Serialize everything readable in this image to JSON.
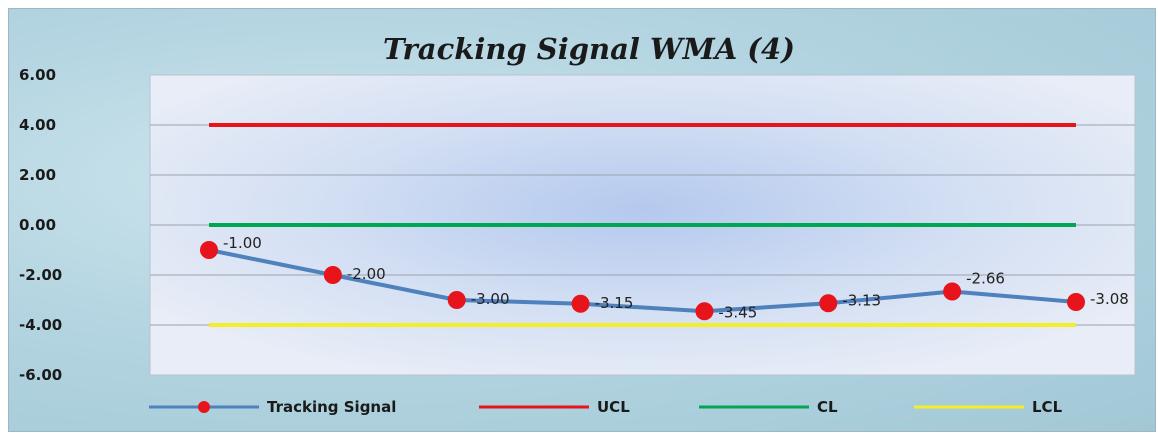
{
  "chart_data": {
    "type": "line",
    "title": "Tracking Signal WMA (4)",
    "xlabel": "",
    "ylabel": "",
    "ylim": [
      -6,
      6
    ],
    "yticks": [
      "6.00",
      "4.00",
      "2.00",
      "0.00",
      "-2.00",
      "-4.00",
      "-6.00"
    ],
    "ytick_values": [
      6,
      4,
      2,
      0,
      -2,
      -4,
      -6
    ],
    "grid": true,
    "legend_position": "bottom",
    "series": [
      {
        "name": "Tracking Signal",
        "color": "#4f81bd",
        "marker_color": "#e8141b",
        "values": [
          -1.0,
          -2.0,
          -3.0,
          -3.15,
          -3.45,
          -3.13,
          -2.66,
          -3.08
        ],
        "labels": [
          "-1.00",
          "-2.00",
          "-3.00",
          "-3.15",
          "-3.45",
          "-3.13",
          "-2.66",
          "-3.08"
        ]
      },
      {
        "name": "UCL",
        "color": "#e8141b",
        "values": [
          4,
          4,
          4,
          4,
          4,
          4,
          4,
          4
        ]
      },
      {
        "name": "CL",
        "color": "#00a651",
        "values": [
          0,
          0,
          0,
          0,
          0,
          0,
          0,
          0
        ]
      },
      {
        "name": "LCL",
        "color": "#f2ef2a",
        "values": [
          -4,
          -4,
          -4,
          -4,
          -4,
          -4,
          -4,
          -4
        ]
      }
    ]
  }
}
